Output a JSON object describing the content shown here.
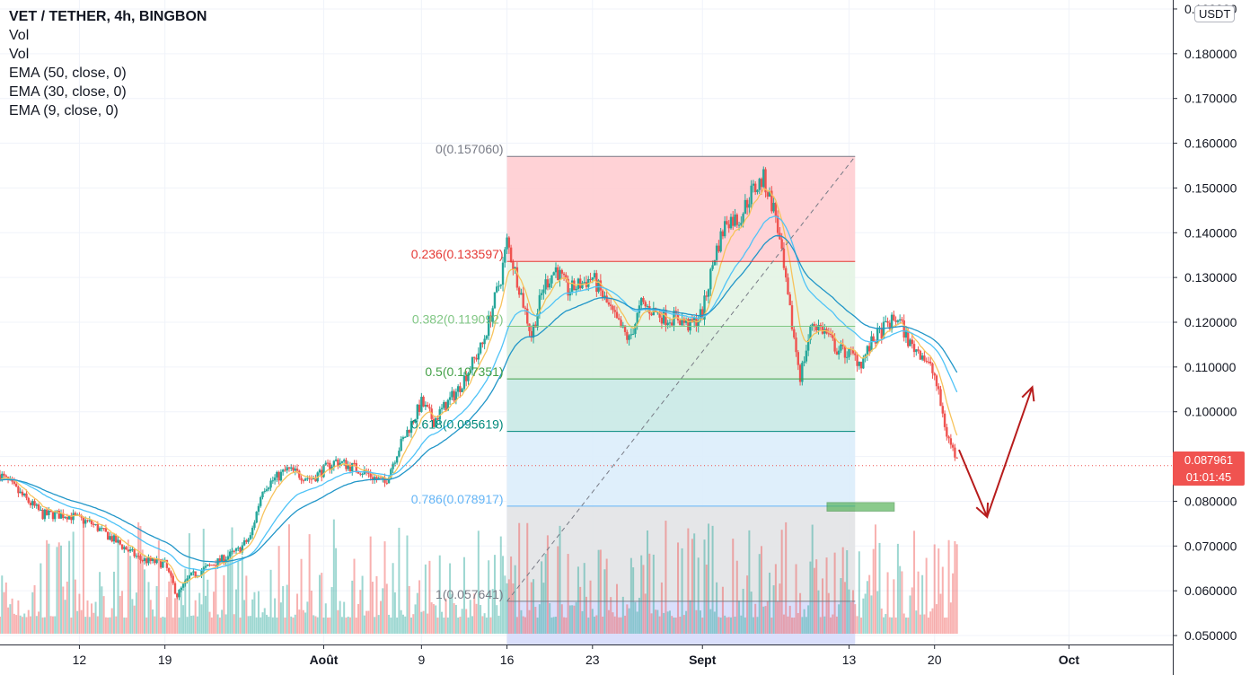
{
  "legend": {
    "title": "VET / TETHER, 4h, BINGBON",
    "lines": [
      "Vol",
      "Vol",
      "EMA (50, close, 0)",
      "EMA (30, close, 0)",
      "EMA (9, close, 0)"
    ]
  },
  "currency": "USDT",
  "last_price": {
    "price": "0.087961",
    "countdown": "01:01:45",
    "color": "#f05350"
  },
  "colors": {
    "ema9": "#f7c35c",
    "ema30": "#4fc3f7",
    "ema50": "#2196c8",
    "up": "#26a69a",
    "down": "#ef5350",
    "grid": "#f0f3fa",
    "axis_text": "#131722",
    "arrow": "#b71c1c",
    "target_box": "#4caf50"
  },
  "chart_data": {
    "type": "candlestick",
    "title": "VET / TETHER, 4h, BINGBON",
    "ylim": [
      0.048,
      0.192
    ],
    "y_ticks": [
      "0.190000",
      "0.180000",
      "0.170000",
      "0.160000",
      "0.150000",
      "0.140000",
      "0.130000",
      "0.120000",
      "0.110000",
      "0.100000",
      "0.090000",
      "0.080000",
      "0.070000",
      "0.060000",
      "0.050000"
    ],
    "y_tick_values": [
      0.19,
      0.18,
      0.17,
      0.16,
      0.15,
      0.14,
      0.13,
      0.12,
      0.11,
      0.1,
      0.09,
      0.08,
      0.07,
      0.06,
      0.05
    ],
    "x_ticks": [
      "12",
      "19",
      "Août",
      "9",
      "16",
      "23",
      "Sept",
      "13",
      "20",
      "Oct"
    ],
    "x_tick_days": [
      12,
      19,
      32,
      40,
      47,
      54,
      63,
      75,
      82,
      93
    ],
    "x_range_days": [
      5.5,
      101.5
    ],
    "x_axis_note": "day numbers counted from 1 July",
    "price_path": [
      [
        5.5,
        0.086
      ],
      [
        7,
        0.082
      ],
      [
        9,
        0.077
      ],
      [
        11,
        0.077
      ],
      [
        13,
        0.075
      ],
      [
        15,
        0.071
      ],
      [
        17,
        0.067
      ],
      [
        19,
        0.066
      ],
      [
        20,
        0.059
      ],
      [
        21,
        0.063
      ],
      [
        23,
        0.066
      ],
      [
        25,
        0.069
      ],
      [
        26,
        0.072
      ],
      [
        27,
        0.083
      ],
      [
        29,
        0.087
      ],
      [
        31,
        0.085
      ],
      [
        33,
        0.089
      ],
      [
        35,
        0.087
      ],
      [
        37,
        0.084
      ],
      [
        38,
        0.091
      ],
      [
        40,
        0.102
      ],
      [
        41,
        0.098
      ],
      [
        43,
        0.105
      ],
      [
        45,
        0.115
      ],
      [
        46.5,
        0.13
      ],
      [
        47,
        0.138
      ],
      [
        48,
        0.128
      ],
      [
        49,
        0.117
      ],
      [
        50,
        0.128
      ],
      [
        51,
        0.132
      ],
      [
        52,
        0.127
      ],
      [
        54,
        0.13
      ],
      [
        55,
        0.125
      ],
      [
        56,
        0.12
      ],
      [
        57,
        0.116
      ],
      [
        58,
        0.124
      ],
      [
        60,
        0.121
      ],
      [
        61,
        0.121
      ],
      [
        62,
        0.119
      ],
      [
        63,
        0.122
      ],
      [
        64,
        0.135
      ],
      [
        65,
        0.143
      ],
      [
        66,
        0.143
      ],
      [
        67,
        0.149
      ],
      [
        68,
        0.152
      ],
      [
        69,
        0.144
      ],
      [
        70,
        0.125
      ],
      [
        71,
        0.108
      ],
      [
        72,
        0.12
      ],
      [
        73,
        0.118
      ],
      [
        74,
        0.114
      ],
      [
        75,
        0.113
      ],
      [
        76,
        0.111
      ],
      [
        77,
        0.116
      ],
      [
        78,
        0.119
      ],
      [
        79,
        0.121
      ],
      [
        80,
        0.115
      ],
      [
        81,
        0.113
      ],
      [
        82,
        0.108
      ],
      [
        83,
        0.095
      ],
      [
        84,
        0.088
      ]
    ],
    "annotations": {
      "fib_retracement": {
        "levels": [
          {
            "ratio": "0",
            "price": 0.15706,
            "label": "0(0.157060)",
            "text_color": "#787b86",
            "line_color": "#787b86",
            "fill": "#ffcdd2"
          },
          {
            "ratio": "0.236",
            "price": 0.133597,
            "label": "0.236(0.133597)",
            "text_color": "#e53935",
            "line_color": "#e53935",
            "fill": "#e3f4e4"
          },
          {
            "ratio": "0.382",
            "price": 0.119092,
            "label": "0.382(0.119092)",
            "text_color": "#81c784",
            "line_color": "#81c784",
            "fill": "#d7eddb"
          },
          {
            "ratio": "0.5",
            "price": 0.107351,
            "label": "0.5(0.107351)",
            "text_color": "#43a047",
            "line_color": "#43a047",
            "fill": "#c9e9e5"
          },
          {
            "ratio": "0.618",
            "price": 0.095619,
            "label": "0.618(0.095619)",
            "text_color": "#00897b",
            "line_color": "#00897b",
            "fill": "#dcedfb"
          },
          {
            "ratio": "0.786",
            "price": 0.078917,
            "label": "0.786(0.078917)",
            "text_color": "#64b5f6",
            "line_color": "#64b5f6",
            "fill": "#e2e3e6"
          },
          {
            "ratio": "1",
            "price": 0.057641,
            "label": "1(0.057641)",
            "text_color": "#787b86",
            "line_color": "#787b86",
            "fill": "#d6dcfb"
          }
        ],
        "x_start_day": 47,
        "x_end_day": 75.5
      },
      "target_zone": {
        "x_start_day": 73.2,
        "x_end_day": 78.7,
        "price_low": 0.0778,
        "price_high": 0.0797
      },
      "projection_arrows": [
        [
          [
            84,
            0.0915
          ],
          [
            86.3,
            0.0765
          ]
        ],
        [
          [
            86.3,
            0.0765
          ],
          [
            90,
            0.1055
          ]
        ]
      ]
    }
  }
}
